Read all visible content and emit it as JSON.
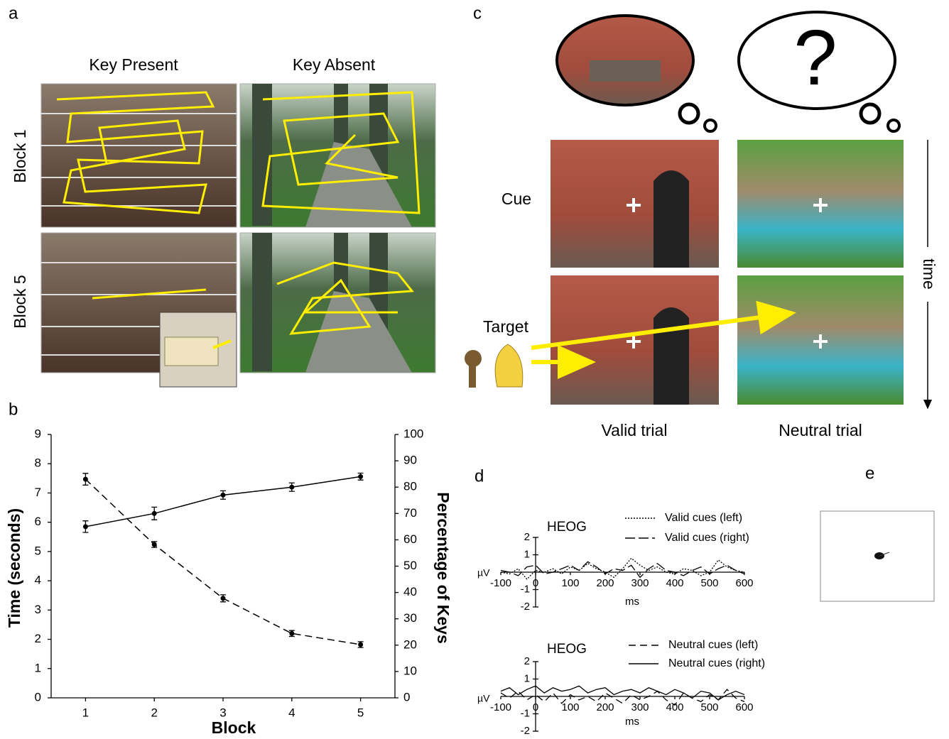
{
  "panel_labels": [
    "a",
    "b",
    "c",
    "d",
    "e"
  ],
  "panel_a": {
    "columns": [
      "Key Present",
      "Key Absent"
    ],
    "rows": [
      "Block 1",
      "Block 5"
    ]
  },
  "panel_c": {
    "question": "?",
    "cue": "Cue",
    "target": "Target",
    "time": "time",
    "trials": [
      "Valid trial",
      "Neutral trial"
    ]
  },
  "chart_data": [
    {
      "type": "line",
      "xlabel": "Block",
      "ylabel": "Time (seconds)",
      "y2label": "Percentage of Keys",
      "x": [
        1,
        2,
        3,
        4,
        5
      ],
      "xlim": [
        0.5,
        5.5
      ],
      "xticks": [
        1,
        2,
        3,
        4,
        5
      ],
      "ylim": [
        0,
        9
      ],
      "yticks": [
        0,
        1,
        2,
        3,
        4,
        5,
        6,
        7,
        8,
        9
      ],
      "y2lim": [
        0,
        100
      ],
      "y2ticks": [
        0,
        10,
        20,
        30,
        40,
        50,
        60,
        70,
        80,
        90,
        100
      ],
      "series": [
        {
          "color": "#000000",
          "style": "dashed",
          "values": [
            7.47,
            5.24,
            3.4,
            2.2,
            1.82
          ],
          "errors": [
            0.2,
            0.1,
            0.12,
            0.1,
            0.1
          ]
        },
        {
          "color": "#000000",
          "style": "solid",
          "axis": "y2",
          "values": [
            65,
            70,
            77,
            80,
            84
          ],
          "errors": [
            2.2,
            2.4,
            1.6,
            1.6,
            1.3
          ]
        }
      ]
    },
    {
      "type": "line",
      "title": "HEOG",
      "ylabel": "µV",
      "xlabel": "ms",
      "x": [
        -100,
        -75,
        -50,
        -25,
        0,
        25,
        50,
        75,
        100,
        125,
        150,
        175,
        200,
        225,
        250,
        275,
        300,
        325,
        350,
        375,
        400,
        425,
        450,
        475,
        500,
        525,
        550,
        575,
        600
      ],
      "xlim": [
        -100,
        600
      ],
      "xticks": [
        -100,
        0,
        100,
        200,
        300,
        400,
        500,
        600
      ],
      "ylim": [
        -2,
        2
      ],
      "yticks": [
        -2,
        -1,
        1,
        2
      ],
      "series": [
        {
          "name": "Valid cues (left)",
          "color": "#000000",
          "style": "dotted",
          "values": [
            0,
            -0.1,
            0.2,
            -0.4,
            0.1,
            0,
            0.2,
            -0.1,
            0.3,
            0.1,
            0.5,
            0.2,
            0,
            -0.3,
            0.2,
            0.8,
            0.4,
            0.1,
            0.3,
            0,
            -0.1,
            0.2,
            0.1,
            -0.2,
            0,
            0.7,
            0.3,
            0.1,
            0
          ]
        },
        {
          "name": "Valid cues (right)",
          "color": "#000000",
          "style": "long-dashed",
          "values": [
            0.1,
            0,
            -0.2,
            0.3,
            0.4,
            -0.1,
            0,
            0.2,
            0.4,
            0.1,
            0.6,
            0.3,
            -0.1,
            0.2,
            0.1,
            0.4,
            -0.3,
            0.2,
            0.5,
            0.1,
            0,
            -0.2,
            0.1,
            0.3,
            -0.1,
            0.2,
            0.4,
            0.1,
            -0.1
          ]
        }
      ]
    },
    {
      "type": "line",
      "title": "HEOG",
      "ylabel": "µV",
      "xlabel": "ms",
      "x": [
        -100,
        -75,
        -50,
        -25,
        0,
        25,
        50,
        75,
        100,
        125,
        150,
        175,
        200,
        225,
        250,
        275,
        300,
        325,
        350,
        375,
        400,
        425,
        450,
        475,
        500,
        525,
        550,
        575,
        600
      ],
      "xlim": [
        -100,
        600
      ],
      "xticks": [
        -100,
        0,
        100,
        200,
        300,
        400,
        500,
        600
      ],
      "ylim": [
        -2,
        2
      ],
      "yticks": [
        -2,
        -1,
        1,
        2
      ],
      "series": [
        {
          "name": "Neutral cues (left)",
          "color": "#000000",
          "style": "dashed",
          "values": [
            0.2,
            -0.1,
            0.3,
            -0.2,
            0.1,
            -0.3,
            0.2,
            -0.4,
            0.1,
            -0.2,
            0,
            -0.3,
            0.2,
            -0.1,
            -0.4,
            0.1,
            -0.2,
            0,
            0.3,
            -0.2,
            -0.5,
            0.2,
            -0.1,
            -0.3,
            0.1,
            -0.2,
            0.4,
            -0.1,
            -0.3
          ]
        },
        {
          "name": "Neutral cues (right)",
          "color": "#000000",
          "style": "solid",
          "values": [
            0.3,
            0.5,
            0.1,
            0.4,
            0.6,
            0.2,
            0.5,
            0.3,
            0.4,
            0.6,
            0.2,
            0.4,
            0.5,
            0.1,
            0.3,
            0.4,
            0.2,
            0.5,
            0.3,
            0.1,
            0.4,
            0.2,
            -0.1,
            0.3,
            0.2,
            -0.2,
            0.1,
            0.3,
            0.1
          ]
        }
      ]
    }
  ]
}
